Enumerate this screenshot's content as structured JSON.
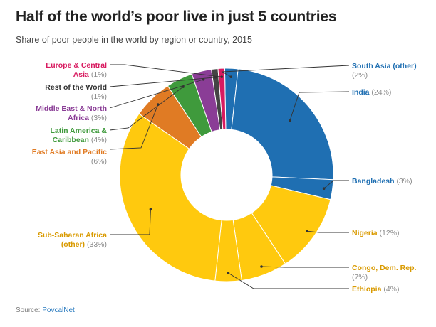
{
  "header": {
    "title": "Half of the world’s poor live in just 5 countries",
    "subtitle": "Share of poor people in the world by region or country, 2015"
  },
  "footer": {
    "source_prefix": "Source: ",
    "source_name": "PovcalNet"
  },
  "chart_data": {
    "type": "pie",
    "title": "Half of the world’s poor live in just 5 countries",
    "subtitle": "Share of poor people in the world by region or country, 2015",
    "donut": true,
    "unit": "%",
    "slices": [
      {
        "name": "South Asia (other)",
        "value": 2,
        "color": "#1f6fb2",
        "label_lines": [
          "South Asia (other)",
          "(2%)"
        ],
        "side": "right",
        "value_on_line": 2
      },
      {
        "name": "India",
        "value": 24,
        "color": "#1f6fb2",
        "label_lines": [
          "India (24%)"
        ],
        "side": "right",
        "value_on_line": 1
      },
      {
        "name": "Bangladesh",
        "value": 3,
        "color": "#1f6fb2",
        "label_lines": [
          "Bangladesh (3%)"
        ],
        "side": "right",
        "value_on_line": 1
      },
      {
        "name": "Nigeria",
        "value": 12,
        "color": "#ffc90e",
        "label_lines": [
          "Nigeria (12%)"
        ],
        "side": "right",
        "value_on_line": 1
      },
      {
        "name": "Congo, Dem. Rep.",
        "value": 7,
        "color": "#ffc90e",
        "label_lines": [
          "Congo, Dem. Rep.",
          "(7%)"
        ],
        "side": "right",
        "value_on_line": 2
      },
      {
        "name": "Ethiopia",
        "value": 4,
        "color": "#ffc90e",
        "label_lines": [
          "Ethiopia (4%)"
        ],
        "side": "right",
        "value_on_line": 1
      },
      {
        "name": "Sub-Saharan Africa (other)",
        "value": 33,
        "color": "#ffc90e",
        "label_lines": [
          "Sub-Saharan Africa",
          "(other) (33%)"
        ],
        "side": "left",
        "value_on_line": 2
      },
      {
        "name": "East Asia and Pacific",
        "value": 6,
        "color": "#e07b24",
        "label_lines": [
          "East Asia and Pacific",
          "(6%)"
        ],
        "side": "left",
        "value_on_line": 2
      },
      {
        "name": "Latin America & Caribbean",
        "value": 4,
        "color": "#3f9a3c",
        "label_lines": [
          "Latin America &",
          "Caribbean (4%)"
        ],
        "side": "left",
        "value_on_line": 2
      },
      {
        "name": "Middle East & North Africa",
        "value": 3,
        "color": "#8a3d96",
        "label_lines": [
          "Middle East & North",
          "Africa (3%)"
        ],
        "side": "left",
        "value_on_line": 2
      },
      {
        "name": "Rest of the World",
        "value": 1,
        "color": "#444444",
        "label_lines": [
          "Rest of the World",
          "(1%)"
        ],
        "side": "left",
        "value_on_line": 2
      },
      {
        "name": "Europe & Central Asia",
        "value": 1,
        "color": "#d81b60",
        "label_lines": [
          "Europe & Central",
          "Asia (1%)"
        ],
        "side": "left",
        "value_on_line": 2
      }
    ]
  }
}
